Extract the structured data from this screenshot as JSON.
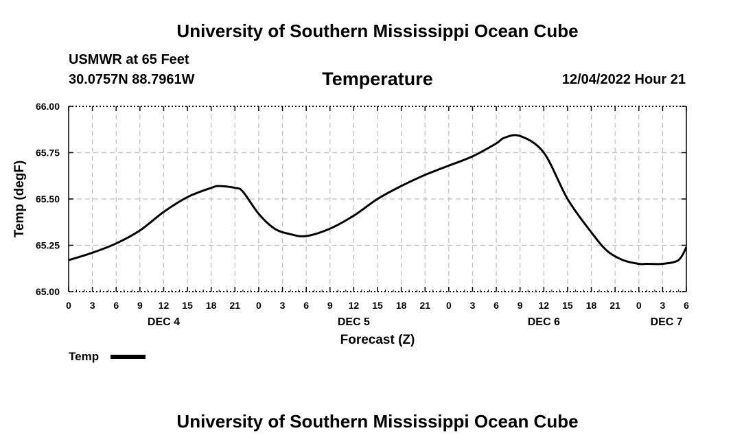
{
  "header": {
    "title": "University of Southern Mississippi Ocean Cube",
    "station": "USMWR at 65 Feet",
    "coords": "30.0757N  88.7961W",
    "subtitle": "Temperature",
    "datetime": "12/04/2022 Hour 21"
  },
  "footer": {
    "title": "University of Southern Mississippi Ocean Cube"
  },
  "legend": {
    "label": "Temp"
  },
  "chart_data": {
    "type": "line",
    "title": "Temperature",
    "xlabel": "Forecast (Z)",
    "ylabel": "Temp (degF)",
    "ylim": [
      65.0,
      66.0
    ],
    "xlim": [
      0,
      78
    ],
    "yticks": [
      "65.00",
      "65.25",
      "65.50",
      "65.75",
      "66.00"
    ],
    "xtick_values": [
      0,
      3,
      6,
      9,
      12,
      15,
      18,
      21,
      24,
      27,
      30,
      33,
      36,
      39,
      42,
      45,
      48,
      51,
      54,
      57,
      60,
      63,
      66,
      69,
      72,
      75,
      78
    ],
    "xtick_labels": [
      "0",
      "3",
      "6",
      "9",
      "12",
      "15",
      "18",
      "21",
      "0",
      "3",
      "6",
      "9",
      "12",
      "15",
      "18",
      "21",
      "0",
      "3",
      "6",
      "9",
      "12",
      "15",
      "18",
      "21",
      "0",
      "3",
      "6"
    ],
    "day_labels": [
      {
        "x": 12,
        "label": "DEC 4"
      },
      {
        "x": 36,
        "label": "DEC 5"
      },
      {
        "x": 60,
        "label": "DEC 6"
      },
      {
        "x": 75.5,
        "label": "DEC 7"
      }
    ],
    "grid": true,
    "series": [
      {
        "name": "Temp",
        "color": "#000000",
        "x": [
          0,
          3,
          6,
          9,
          12,
          15,
          18,
          19,
          21,
          22,
          24,
          26,
          28,
          30,
          33,
          36,
          39,
          42,
          45,
          48,
          51,
          54,
          55,
          57,
          60,
          63,
          66,
          68,
          70,
          72,
          73,
          75,
          77,
          78
        ],
        "values": [
          65.17,
          65.21,
          65.26,
          65.33,
          65.43,
          65.51,
          65.56,
          65.57,
          65.56,
          65.54,
          65.42,
          65.34,
          65.31,
          65.3,
          65.34,
          65.41,
          65.5,
          65.57,
          65.63,
          65.68,
          65.73,
          65.8,
          65.83,
          65.84,
          65.75,
          65.5,
          65.32,
          65.22,
          65.17,
          65.15,
          65.15,
          65.15,
          65.17,
          65.24
        ]
      }
    ]
  }
}
